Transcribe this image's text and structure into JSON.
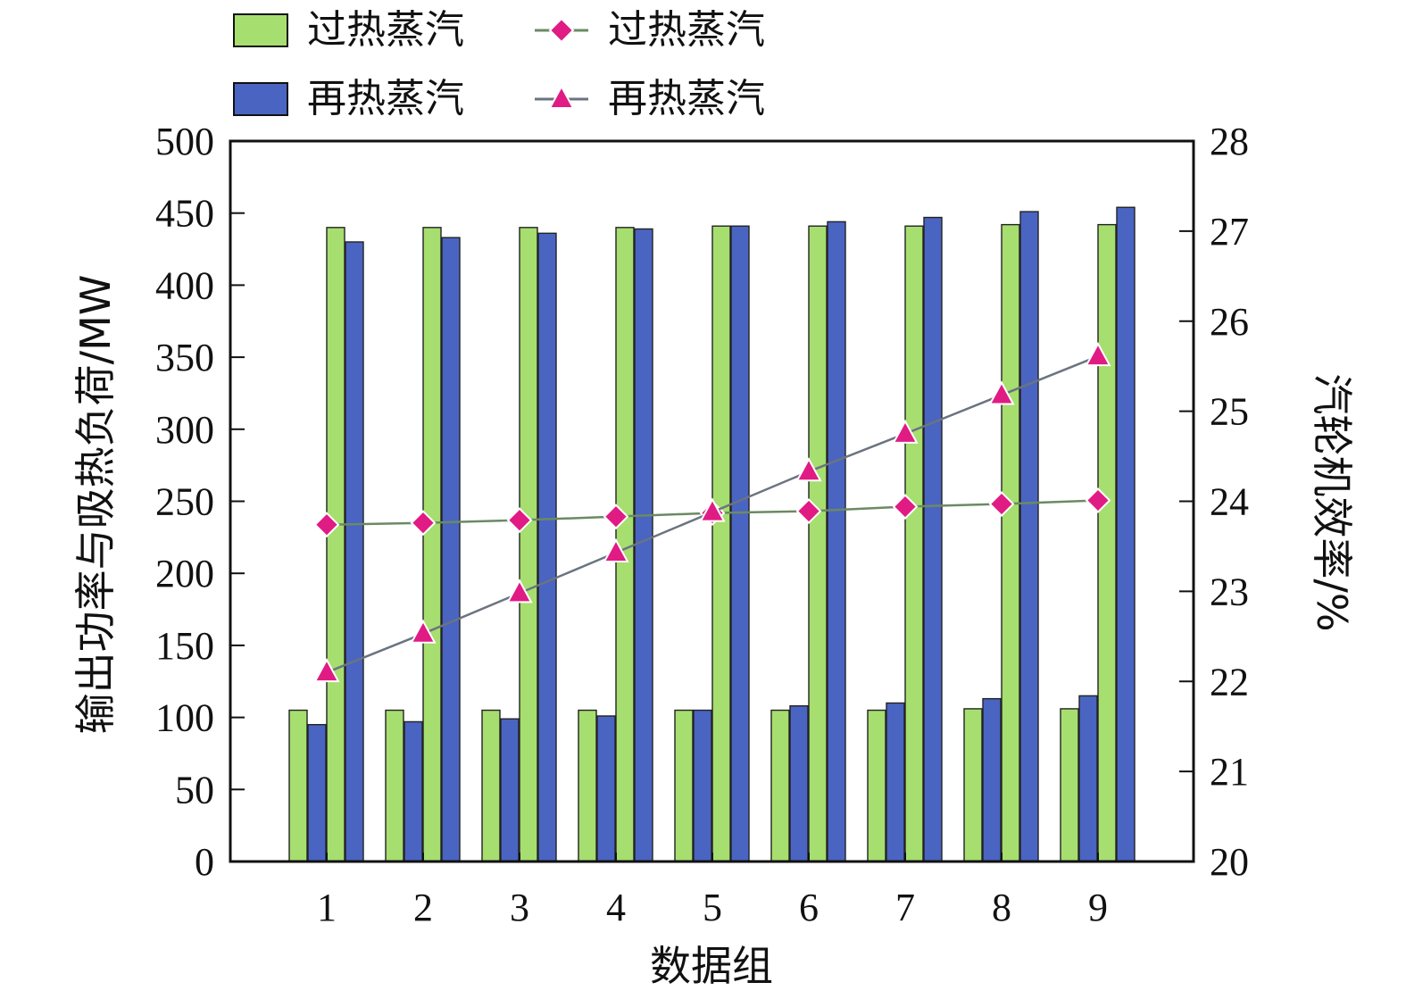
{
  "chart_data": {
    "type": "bar",
    "xlabel": "数据组",
    "ylabel": "输出功率与吸热负荷/MW",
    "ylabel_right": "汽轮机效率/%",
    "categories": [
      "1",
      "2",
      "3",
      "4",
      "5",
      "6",
      "7",
      "8",
      "9"
    ],
    "ylim": [
      0,
      500
    ],
    "yticks": [
      0,
      50,
      100,
      150,
      200,
      250,
      300,
      350,
      400,
      450,
      500
    ],
    "ylim_right": [
      20,
      28
    ],
    "yticks_right": [
      20,
      21,
      22,
      23,
      24,
      25,
      26,
      27,
      28
    ],
    "legend_placement": "top-left",
    "series": [
      {
        "name": "过热蒸汽",
        "kind": "bar",
        "axis": "left",
        "group": "output-power",
        "color": "#a6de6f",
        "values": [
          105,
          105,
          105,
          105,
          105,
          105,
          105,
          106,
          106
        ]
      },
      {
        "name": "再热蒸汽",
        "kind": "bar",
        "axis": "left",
        "group": "output-power",
        "color": "#4a64c2",
        "values": [
          95,
          97,
          99,
          101,
          105,
          108,
          110,
          113,
          115
        ]
      },
      {
        "name": "过热蒸汽",
        "kind": "bar",
        "axis": "left",
        "group": "heat-load",
        "color": "#a6de6f",
        "values": [
          440,
          440,
          440,
          440,
          441,
          441,
          441,
          442,
          442
        ]
      },
      {
        "name": "再热蒸汽",
        "kind": "bar",
        "axis": "left",
        "group": "heat-load",
        "color": "#4a64c2",
        "values": [
          430,
          433,
          436,
          439,
          441,
          444,
          447,
          451,
          454
        ]
      },
      {
        "name": "过热蒸汽",
        "kind": "line",
        "marker": "diamond",
        "axis": "right",
        "color": "#e01b84",
        "line_color": "#6b8a63",
        "values": [
          23.74,
          23.76,
          23.79,
          23.83,
          23.87,
          23.89,
          23.94,
          23.97,
          24.01
        ]
      },
      {
        "name": "再热蒸汽",
        "kind": "line",
        "marker": "triangle",
        "axis": "right",
        "color": "#e01b84",
        "line_color": "#6a7480",
        "values": [
          22.1,
          22.53,
          22.98,
          23.43,
          23.88,
          24.33,
          24.75,
          25.18,
          25.61
        ]
      }
    ]
  }
}
